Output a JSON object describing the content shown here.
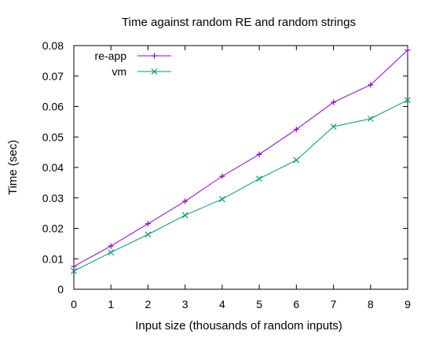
{
  "chart_data": {
    "type": "line",
    "title": "Time against random RE and random strings",
    "xlabel": "Input size (thousands of random inputs)",
    "ylabel": "Time (sec)",
    "xlim": [
      0,
      9
    ],
    "ylim": [
      0,
      0.08
    ],
    "x_ticks": [
      "0",
      "1",
      "2",
      "3",
      "4",
      "5",
      "6",
      "7",
      "8",
      "9"
    ],
    "y_ticks": [
      "0",
      "0.01",
      "0.02",
      "0.03",
      "0.04",
      "0.05",
      "0.06",
      "0.07",
      "0.08"
    ],
    "grid": false,
    "legend_position": "top-left",
    "x": [
      0,
      1,
      2,
      3,
      4,
      5,
      6,
      7,
      8,
      9
    ],
    "series": [
      {
        "name": "re-app",
        "marker": "plus",
        "color": "#9400d3",
        "values": [
          0.0075,
          0.0142,
          0.0215,
          0.0289,
          0.0371,
          0.0443,
          0.0525,
          0.0614,
          0.0671,
          0.0785
        ]
      },
      {
        "name": "vm",
        "marker": "cross",
        "color": "#009e73",
        "values": [
          0.006,
          0.0121,
          0.018,
          0.0243,
          0.0296,
          0.0363,
          0.0424,
          0.0534,
          0.056,
          0.0621
        ]
      }
    ]
  }
}
